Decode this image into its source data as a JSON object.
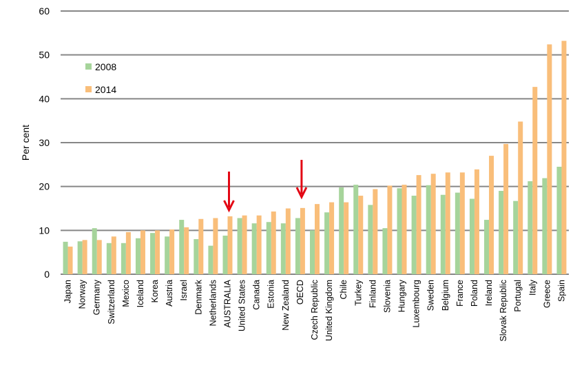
{
  "chart_data": {
    "type": "bar",
    "title": "",
    "xlabel": "",
    "ylabel": "Per cent",
    "ylim": [
      0,
      60
    ],
    "yticks": [
      0,
      10,
      20,
      30,
      40,
      50,
      60
    ],
    "grid": true,
    "legend_position": "top-left",
    "categories": [
      "Japan",
      "Norway",
      "Germany",
      "Switzerland",
      "Mexico",
      "Iceland",
      "Korea",
      "Austria",
      "Israel",
      "Denmark",
      "Netherlands",
      "AUSTRALIA",
      "United States",
      "Canada",
      "Estonia",
      "New Zealand",
      "OECD",
      "Czech Republic",
      "United Kingdom",
      "Chile",
      "Turkey",
      "Finland",
      "Slovenia",
      "Hungary",
      "Luxembourg",
      "Sweden",
      "Belgium",
      "France",
      "Poland",
      "Ireland",
      "Slovak Republic",
      "Portugal",
      "Italy",
      "Greece",
      "Spain"
    ],
    "series": [
      {
        "name": "2008",
        "color": "#a6d49b",
        "values": [
          7.4,
          7.5,
          10.5,
          7.1,
          7.1,
          8.2,
          9.4,
          8.6,
          12.4,
          8.0,
          6.5,
          8.8,
          12.8,
          11.6,
          11.9,
          11.6,
          12.8,
          10.0,
          14.1,
          19.8,
          20.4,
          15.8,
          10.5,
          19.6,
          17.9,
          20.3,
          18.1,
          18.6,
          17.2,
          12.4,
          19.0,
          16.7,
          21.2,
          21.9,
          24.5
        ]
      },
      {
        "name": "2014",
        "color": "#f9be7a",
        "values": [
          6.3,
          7.8,
          7.8,
          8.6,
          9.6,
          10.0,
          10.0,
          10.2,
          10.7,
          12.6,
          12.8,
          13.2,
          13.4,
          13.4,
          14.3,
          15.0,
          15.1,
          16.0,
          16.4,
          16.4,
          17.9,
          19.4,
          20.2,
          20.4,
          22.6,
          22.9,
          23.2,
          23.2,
          23.9,
          27.0,
          29.7,
          34.8,
          42.7,
          52.4,
          53.2
        ]
      }
    ],
    "annotations": [
      {
        "type": "arrow",
        "target": "AUSTRALIA",
        "color": "#e30613"
      },
      {
        "type": "arrow",
        "target": "OECD",
        "color": "#e30613"
      }
    ]
  }
}
